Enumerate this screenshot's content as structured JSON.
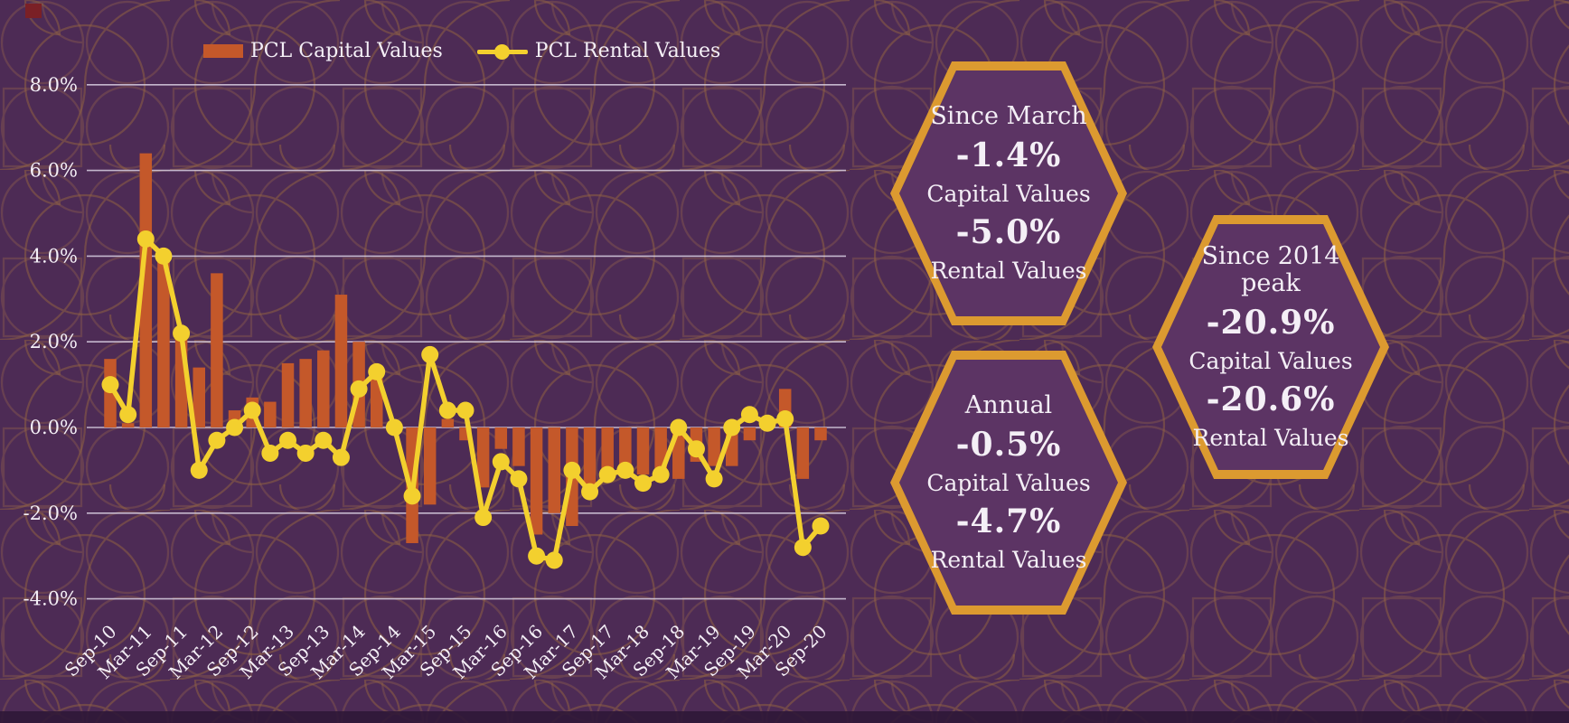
{
  "background": {
    "base_color": "#4d2b55",
    "pattern_stroke_1": "#7d524e",
    "pattern_stroke_2": "#96653f",
    "bottom_band_color": "#2f1737",
    "corner_square_color": "#7a2026"
  },
  "legend": {
    "items": [
      {
        "label": "PCL Capital Values",
        "marker": "bar-swatch"
      },
      {
        "label": "PCL Rental Values",
        "marker": "line-dot"
      }
    ]
  },
  "chart_data": {
    "type": "bar+line",
    "title": "",
    "xlabel": "",
    "ylabel": "",
    "ylim": [
      -4.8,
      8.6
    ],
    "grid": true,
    "legend_position": "top",
    "ytick_labels": [
      "8.0%",
      "6.0%",
      "4.0%",
      "2.0%",
      "0.0%",
      "-2.0%",
      "-4.0%"
    ],
    "ytick_values": [
      8,
      6,
      4,
      2,
      0,
      -2,
      -4
    ],
    "x_tick_labels": [
      "Sep-10",
      "Mar-11",
      "Sep-11",
      "Mar-12",
      "Sep-12",
      "Mar-13",
      "Sep-13",
      "Mar-14",
      "Sep-14",
      "Mar-15",
      "Sep-15",
      "Mar-16",
      "Sep-16",
      "Mar-17",
      "Sep-17",
      "Mar-18",
      "Sep-18",
      "Mar-19",
      "Sep-19",
      "Mar-20",
      "Sep-20"
    ],
    "x_tick_every": 2,
    "categories": [
      "Sep-10",
      "Dec-10",
      "Mar-11",
      "Jun-11",
      "Sep-11",
      "Dec-11",
      "Mar-12",
      "Jun-12",
      "Sep-12",
      "Dec-12",
      "Mar-13",
      "Jun-13",
      "Sep-13",
      "Dec-13",
      "Mar-14",
      "Jun-14",
      "Sep-14",
      "Dec-14",
      "Mar-15",
      "Jun-15",
      "Sep-15",
      "Dec-15",
      "Mar-16",
      "Jun-16",
      "Sep-16",
      "Dec-16",
      "Mar-17",
      "Jun-17",
      "Sep-17",
      "Dec-17",
      "Mar-18",
      "Jun-18",
      "Sep-18",
      "Dec-18",
      "Mar-19",
      "Jun-19",
      "Sep-19",
      "Dec-19",
      "Mar-20",
      "Jun-20",
      "Sep-20"
    ],
    "series": [
      {
        "name": "PCL Capital Values",
        "type": "bar",
        "color": "#c4582a",
        "values": [
          1.6,
          0.1,
          6.4,
          3.9,
          2.1,
          1.4,
          3.6,
          0.4,
          0.7,
          0.6,
          1.5,
          1.6,
          1.8,
          3.1,
          2.0,
          1.4,
          0.1,
          -2.7,
          -1.8,
          0.2,
          -0.3,
          -1.4,
          -0.5,
          -0.9,
          -2.5,
          -2.0,
          -2.3,
          -1.6,
          -1.2,
          -1.0,
          -1.1,
          -1.1,
          -1.2,
          -0.8,
          -0.9,
          -0.9,
          -0.3,
          0.1,
          0.9,
          -1.2,
          -0.3
        ]
      },
      {
        "name": "PCL Rental Values",
        "type": "line",
        "color": "#f3d02e",
        "values": [
          1.0,
          0.3,
          4.4,
          4.0,
          2.2,
          -1.0,
          -0.3,
          0.0,
          0.4,
          -0.6,
          -0.3,
          -0.6,
          -0.3,
          -0.7,
          0.9,
          1.3,
          0.0,
          -1.6,
          1.7,
          0.4,
          0.4,
          -2.1,
          -0.8,
          -1.2,
          -3.0,
          -3.1,
          -1.0,
          -1.5,
          -1.1,
          -1.0,
          -1.3,
          -1.1,
          0.0,
          -0.5,
          -1.2,
          0.0,
          0.3,
          0.1,
          0.2,
          -2.8,
          -2.3
        ]
      }
    ]
  },
  "stat_hexagons": [
    {
      "id": "since-march",
      "title": "Since March",
      "value1": "-1.4%",
      "label1": "Capital Values",
      "value2": "-5.0%",
      "label2": "Rental Values"
    },
    {
      "id": "since-peak",
      "title": "Since 2014 peak",
      "value1": "-20.9%",
      "label1": "Capital Values",
      "value2": "-20.6%",
      "label2": "Rental Values"
    },
    {
      "id": "annual",
      "title": "Annual",
      "value1": "-0.5%",
      "label1": "Capital Values",
      "value2": "-4.7%",
      "label2": "Rental Values"
    }
  ],
  "hex_style": {
    "border_color": "#dc9a30",
    "fill_color": "#5c3464",
    "text_color": "#f4eff6"
  },
  "chart_style": {
    "grid_color": "#d9d0e3",
    "text_color": "#f4eff6"
  }
}
